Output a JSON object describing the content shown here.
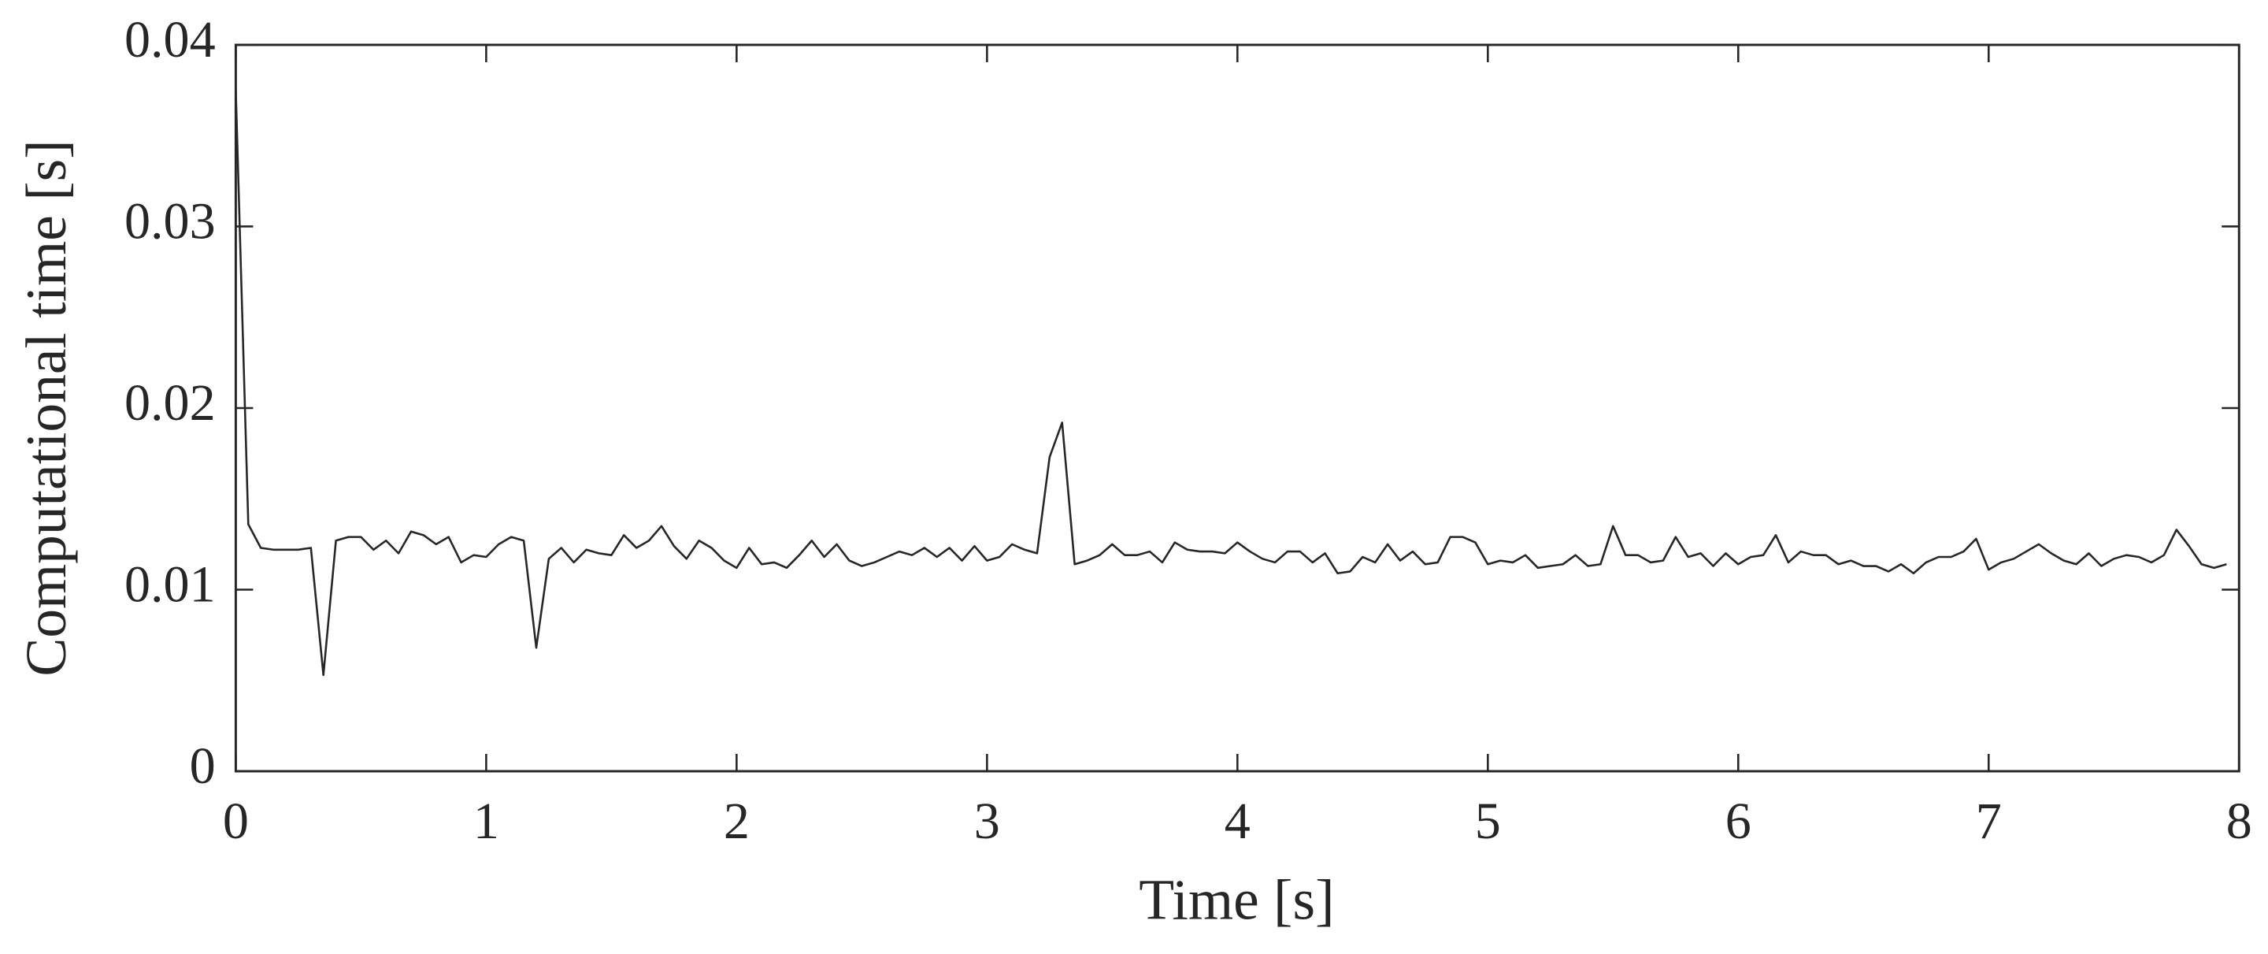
{
  "chart_data": {
    "type": "line",
    "xlabel": "Time [s]",
    "ylabel": "Computational time [s]",
    "x": [
      0,
      0.05,
      0.1,
      0.15,
      0.2,
      0.25,
      0.3,
      0.35,
      0.4,
      0.45,
      0.5,
      0.55,
      0.6,
      0.65,
      0.7,
      0.75,
      0.8,
      0.85,
      0.9,
      0.95,
      1,
      1.05,
      1.1,
      1.15,
      1.2,
      1.25,
      1.3,
      1.35,
      1.4,
      1.45,
      1.5,
      1.55,
      1.6,
      1.65,
      1.7,
      1.75,
      1.8,
      1.85,
      1.9,
      1.95,
      2,
      2.05,
      2.1,
      2.15,
      2.2,
      2.25,
      2.3,
      2.35,
      2.4,
      2.45,
      2.5,
      2.55,
      2.6,
      2.65,
      2.7,
      2.75,
      2.8,
      2.85,
      2.9,
      2.95,
      3,
      3.05,
      3.1,
      3.15,
      3.2,
      3.25,
      3.3,
      3.35,
      3.4,
      3.45,
      3.5,
      3.55,
      3.6,
      3.65,
      3.7,
      3.75,
      3.8,
      3.85,
      3.9,
      3.95,
      4,
      4.05,
      4.1,
      4.15,
      4.2,
      4.25,
      4.3,
      4.35,
      4.4,
      4.45,
      4.5,
      4.55,
      4.6,
      4.65,
      4.7,
      4.75,
      4.8,
      4.85,
      4.9,
      4.95,
      5,
      5.05,
      5.1,
      5.15,
      5.2,
      5.25,
      5.3,
      5.35,
      5.4,
      5.45,
      5.5,
      5.55,
      5.6,
      5.65,
      5.7,
      5.75,
      5.8,
      5.85,
      5.9,
      5.95,
      6,
      6.05,
      6.1,
      6.15,
      6.2,
      6.25,
      6.3,
      6.35,
      6.4,
      6.45,
      6.5,
      6.55,
      6.6,
      6.65,
      6.7,
      6.75,
      6.8,
      6.85,
      6.9,
      6.95,
      7,
      7.05,
      7.1,
      7.15,
      7.2,
      7.25,
      7.3,
      7.35,
      7.4,
      7.45,
      7.5,
      7.55,
      7.6,
      7.65,
      7.7,
      7.75,
      7.8,
      7.85,
      7.9,
      7.95
    ],
    "values": [
      0.0375,
      0.0136,
      0.0123,
      0.0122,
      0.0122,
      0.0122,
      0.0123,
      0.0053,
      0.0127,
      0.0129,
      0.0129,
      0.0122,
      0.0127,
      0.012,
      0.0132,
      0.013,
      0.0125,
      0.0129,
      0.0115,
      0.0119,
      0.0118,
      0.0125,
      0.0129,
      0.0127,
      0.0068,
      0.0117,
      0.0123,
      0.0115,
      0.0122,
      0.012,
      0.0119,
      0.013,
      0.0123,
      0.0127,
      0.0135,
      0.0124,
      0.0117,
      0.0127,
      0.0123,
      0.0116,
      0.0112,
      0.0123,
      0.0114,
      0.0115,
      0.0112,
      0.0119,
      0.0127,
      0.0118,
      0.0125,
      0.0116,
      0.0113,
      0.0115,
      0.0118,
      0.0121,
      0.0119,
      0.0123,
      0.0118,
      0.0123,
      0.0116,
      0.0124,
      0.0116,
      0.0118,
      0.0125,
      0.0122,
      0.012,
      0.0173,
      0.0192,
      0.0114,
      0.0116,
      0.0119,
      0.0125,
      0.0119,
      0.0119,
      0.0121,
      0.0115,
      0.0126,
      0.0122,
      0.0121,
      0.0121,
      0.012,
      0.0126,
      0.0121,
      0.0117,
      0.0115,
      0.0121,
      0.0121,
      0.0115,
      0.012,
      0.0109,
      0.011,
      0.0118,
      0.0115,
      0.0125,
      0.0116,
      0.0121,
      0.0114,
      0.0115,
      0.0129,
      0.0129,
      0.0126,
      0.0114,
      0.0116,
      0.0115,
      0.0119,
      0.0112,
      0.0113,
      0.0114,
      0.0119,
      0.0113,
      0.0114,
      0.0135,
      0.0119,
      0.0119,
      0.0115,
      0.0116,
      0.0129,
      0.0118,
      0.012,
      0.0113,
      0.012,
      0.0114,
      0.0118,
      0.0119,
      0.013,
      0.0115,
      0.0121,
      0.0119,
      0.0119,
      0.0114,
      0.0116,
      0.0113,
      0.0113,
      0.011,
      0.0114,
      0.0109,
      0.0115,
      0.0118,
      0.0118,
      0.0121,
      0.0128,
      0.0111,
      0.0115,
      0.0117,
      0.0121,
      0.0125,
      0.012,
      0.0116,
      0.0114,
      0.012,
      0.0113,
      0.0117,
      0.0119,
      0.0118,
      0.0115,
      0.0119,
      0.0133,
      0.0124,
      0.0114,
      0.0112,
      0.0114
    ],
    "color": "#262626",
    "xlim": [
      0,
      8
    ],
    "xticks": [
      0,
      1,
      2,
      3,
      4,
      5,
      6,
      7,
      8
    ],
    "ylim": [
      0,
      0.04
    ],
    "yticks": [
      0,
      0.01,
      0.02,
      0.03,
      0.04
    ],
    "grid": false
  }
}
